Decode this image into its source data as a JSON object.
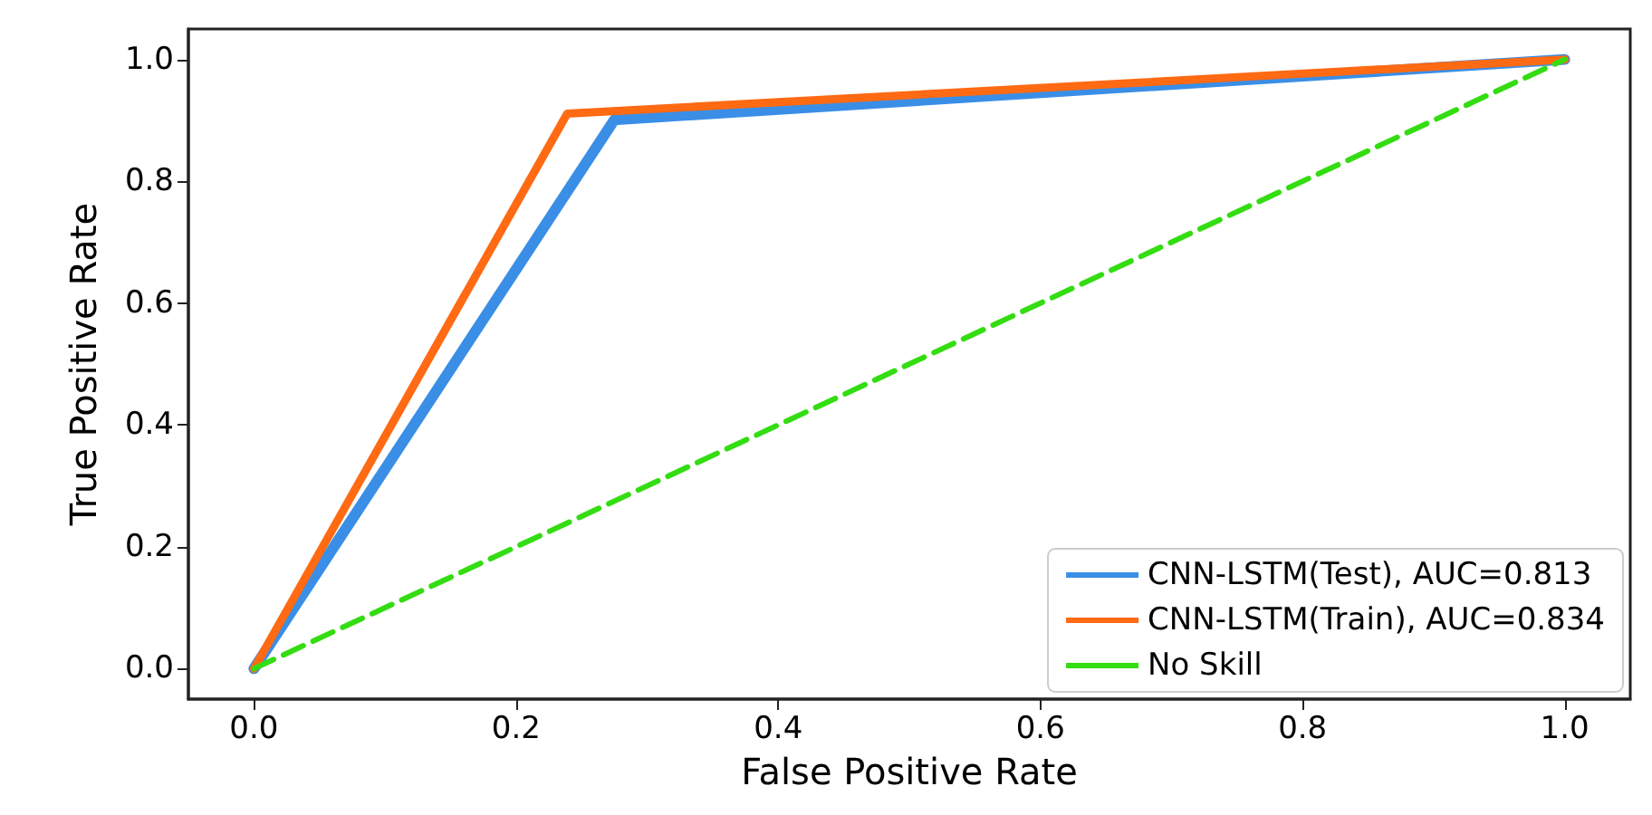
{
  "chart_data": {
    "type": "line",
    "xlabel": "False Positive Rate",
    "ylabel": "True Positive Rate",
    "xlim": [
      -0.05,
      1.05
    ],
    "ylim": [
      -0.05,
      1.05
    ],
    "xticks": [
      {
        "value": 0,
        "label": "0.0"
      },
      {
        "value": 0.2,
        "label": "0.2"
      },
      {
        "value": 0.4,
        "label": "0.4"
      },
      {
        "value": 0.6,
        "label": "0.6"
      },
      {
        "value": 0.8,
        "label": "0.8"
      },
      {
        "value": 1,
        "label": "1.0"
      }
    ],
    "yticks": [
      {
        "value": 0,
        "label": "0.0"
      },
      {
        "value": 0.2,
        "label": "0.2"
      },
      {
        "value": 0.4,
        "label": "0.4"
      },
      {
        "value": 0.6,
        "label": "0.6"
      },
      {
        "value": 0.8,
        "label": "0.8"
      },
      {
        "value": 1,
        "label": "1.0"
      }
    ],
    "series": [
      {
        "name": "CNN-LSTM(Test), AUC=0.813",
        "color": "#3a8ee6",
        "x": [
          0,
          0.275,
          1
        ],
        "values": [
          0,
          0.901,
          1
        ]
      },
      {
        "name": "CNN-LSTM(Train), AUC=0.834",
        "color": "#ff6a13",
        "x": [
          0,
          0.239,
          1
        ],
        "values": [
          0,
          0.911,
          1
        ]
      },
      {
        "name": "No Skill",
        "color": "#33dd11",
        "x": [
          0,
          1
        ],
        "values": [
          0,
          1
        ],
        "line_style": "dashed"
      }
    ],
    "legend": "bottom right",
    "grid": false,
    "marker": "none"
  }
}
